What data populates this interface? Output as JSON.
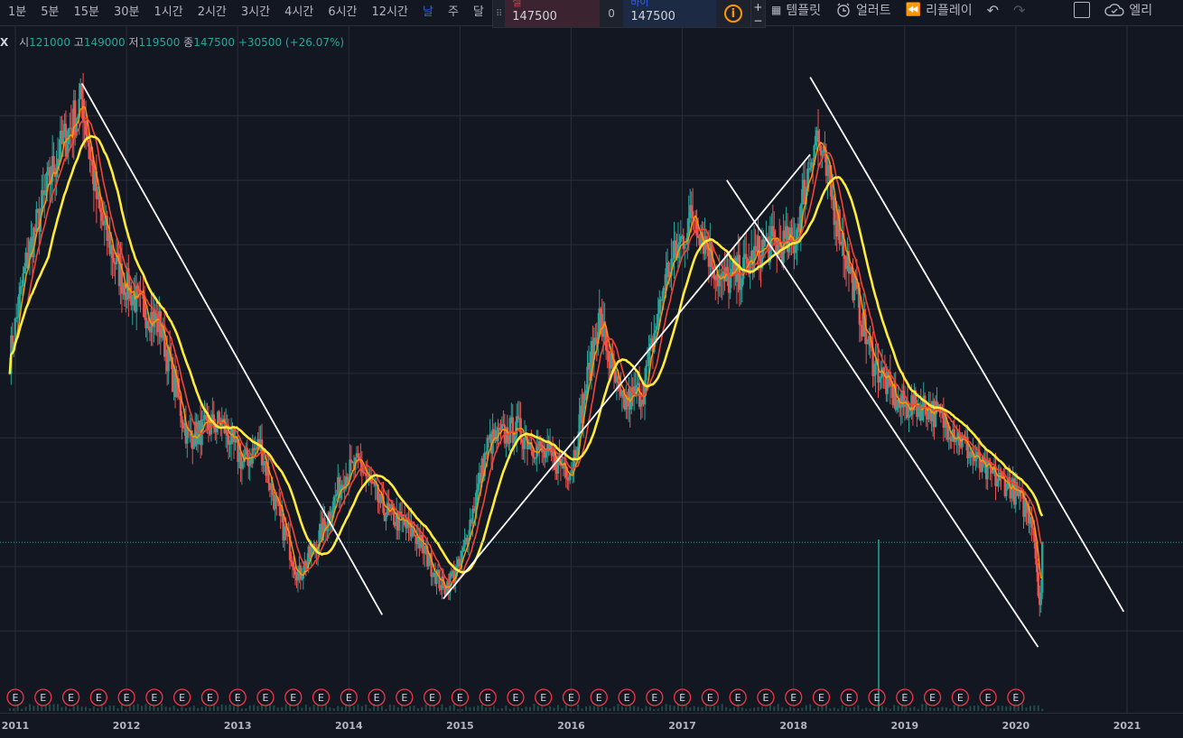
{
  "toolbar": {
    "timeframes": [
      "1분",
      "5분",
      "15분",
      "30분",
      "1시간",
      "2시간",
      "3시간",
      "4시간",
      "6시간",
      "12시간",
      "날",
      "주",
      "달"
    ],
    "active_timeframe": "날",
    "dropdown_icon": "chevron-down-icon",
    "chart_type_icon": "candlestick-icon",
    "tools": [
      {
        "label": "템플릿",
        "icon": "template-icon"
      },
      {
        "label": "얼러트",
        "icon": "alarm-clock-icon"
      },
      {
        "label": "리플레이",
        "icon": "rewind-icon"
      }
    ],
    "right_label": "엘리",
    "right_icon": "cloud-icon"
  },
  "trade": {
    "sell_label": "셀",
    "sell_price": "147500",
    "spread": "0",
    "buy_label": "바이",
    "buy_price": "147500",
    "info_glyph": "i",
    "plus": "+",
    "minus": "−"
  },
  "ohlc": {
    "symbol": "X",
    "open_label": "시",
    "open": "121000",
    "high_label": "고",
    "high": "149000",
    "low_label": "저",
    "low": "119500",
    "close_label": "종",
    "close": "147500",
    "change": "+30500 (+26.07%)"
  },
  "colors": {
    "background": "#131722",
    "grid": "#2a2e39",
    "up": "#26a69a",
    "down": "#ef5350",
    "ma_short": "#ff9800",
    "ma_mid": "#f44336",
    "ma_long": "#ffeb3b",
    "trendline": "#ffffff",
    "earnings_badge": "#f23645"
  },
  "chart_data": {
    "type": "line",
    "x_tick_labels": [
      "2011",
      "2012",
      "2013",
      "2014",
      "2015",
      "2016",
      "2017",
      "2018",
      "2019",
      "2020",
      "2021"
    ],
    "xlim": [
      2010.95,
      2021.5
    ],
    "ylim": [
      110000,
      300000
    ],
    "price_path": [
      [
        2010.95,
        205000
      ],
      [
        2011.1,
        235000
      ],
      [
        2011.35,
        265000
      ],
      [
        2011.6,
        285000
      ],
      [
        2011.75,
        250000
      ],
      [
        2011.95,
        230000
      ],
      [
        2012.1,
        222000
      ],
      [
        2012.3,
        215000
      ],
      [
        2012.55,
        180000
      ],
      [
        2012.85,
        185000
      ],
      [
        2013.05,
        172000
      ],
      [
        2013.2,
        178000
      ],
      [
        2013.35,
        158000
      ],
      [
        2013.55,
        137000
      ],
      [
        2013.75,
        150000
      ],
      [
        2013.95,
        168000
      ],
      [
        2014.1,
        172000
      ],
      [
        2014.3,
        158000
      ],
      [
        2014.6,
        150000
      ],
      [
        2014.85,
        133000
      ],
      [
        2015.0,
        140000
      ],
      [
        2015.25,
        178000
      ],
      [
        2015.5,
        183000
      ],
      [
        2015.75,
        175000
      ],
      [
        2016.0,
        170000
      ],
      [
        2016.25,
        218000
      ],
      [
        2016.45,
        190000
      ],
      [
        2016.65,
        195000
      ],
      [
        2016.85,
        230000
      ],
      [
        2017.1,
        250000
      ],
      [
        2017.35,
        228000
      ],
      [
        2017.55,
        232000
      ],
      [
        2017.75,
        240000
      ],
      [
        2018.0,
        240000
      ],
      [
        2018.2,
        275000
      ],
      [
        2018.45,
        240000
      ],
      [
        2018.7,
        205000
      ],
      [
        2018.95,
        190000
      ],
      [
        2019.2,
        190000
      ],
      [
        2019.45,
        182000
      ],
      [
        2019.7,
        170000
      ],
      [
        2019.95,
        165000
      ],
      [
        2020.15,
        155000
      ],
      [
        2020.2,
        135000
      ],
      [
        2020.22,
        126000
      ],
      [
        2020.24,
        147500
      ]
    ],
    "moving_averages": [
      {
        "color": "#ff9800"
      },
      {
        "color": "#f44336"
      },
      {
        "color": "#ffeb3b"
      }
    ],
    "current_price": 147500,
    "trendlines": [
      {
        "from": [
          2011.6,
          290000
        ],
        "to": [
          2014.3,
          125000
        ]
      },
      {
        "from": [
          2014.85,
          130000
        ],
        "to": [
          2018.15,
          268000
        ]
      },
      {
        "from": [
          2017.4,
          260000
        ],
        "to": [
          2020.2,
          115000
        ]
      },
      {
        "from": [
          2018.15,
          292000
        ],
        "to": [
          2020.97,
          126000
        ]
      }
    ],
    "earnings_marker": "E",
    "grid": true
  }
}
